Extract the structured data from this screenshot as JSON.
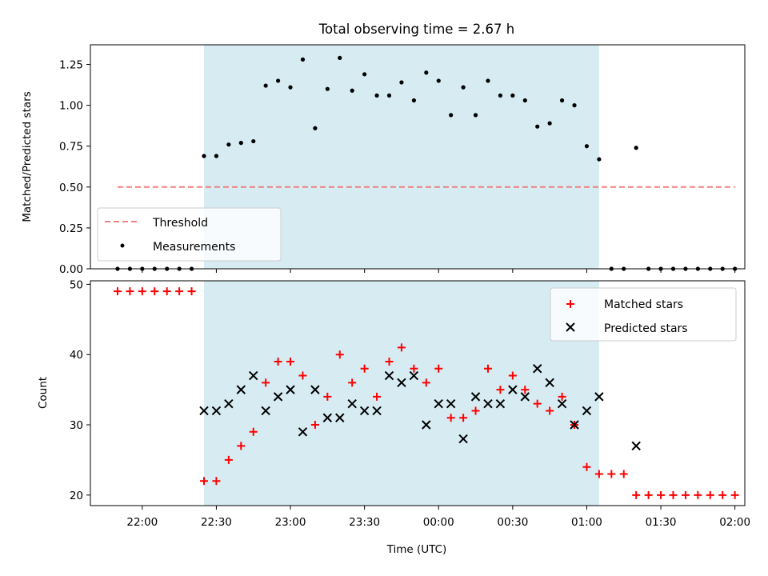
{
  "title": "Total observing time = 2.67 h",
  "chart_data": [
    {
      "type": "scatter",
      "ylabel": "Matched/Predicted stars",
      "ylim": [
        0,
        1.37
      ],
      "yticks": [
        0,
        0.25,
        0.5,
        0.75,
        1.0,
        1.25
      ],
      "ytick_labels": [
        "0.00",
        "0.25",
        "0.50",
        "0.75",
        "1.00",
        "1.25"
      ],
      "shaded_span": [
        "22:25",
        "01:05"
      ],
      "shade_color": "#add8e6",
      "threshold": {
        "name": "Threshold",
        "value": 0.5,
        "x_range": [
          "21:50",
          "02:00"
        ],
        "color": "#f08080"
      },
      "legend": {
        "position": "lower-left",
        "entries": [
          "Threshold",
          "Measurements"
        ]
      },
      "series": [
        {
          "name": "Measurements",
          "color": "#000000",
          "marker": "dot",
          "x": [
            "21:50",
            "21:55",
            "22:00",
            "22:05",
            "22:10",
            "22:15",
            "22:20",
            "22:25",
            "22:30",
            "22:35",
            "22:40",
            "22:45",
            "22:50",
            "22:55",
            "23:00",
            "23:05",
            "23:10",
            "23:15",
            "23:20",
            "23:25",
            "23:30",
            "23:35",
            "23:40",
            "23:45",
            "23:50",
            "23:55",
            "00:00",
            "00:05",
            "00:10",
            "00:15",
            "00:20",
            "00:25",
            "00:30",
            "00:35",
            "00:40",
            "00:45",
            "00:50",
            "00:55",
            "01:00",
            "01:05",
            "01:10",
            "01:15",
            "01:20",
            "01:25",
            "01:30",
            "01:35",
            "01:40",
            "01:45",
            "01:50",
            "01:55",
            "02:00"
          ],
          "y": [
            0,
            0,
            0,
            0,
            0,
            0,
            0,
            0.69,
            0.69,
            0.76,
            0.77,
            0.78,
            1.12,
            1.15,
            1.11,
            1.28,
            0.86,
            1.1,
            1.29,
            1.09,
            1.19,
            1.06,
            1.06,
            1.14,
            1.03,
            1.2,
            1.15,
            0.94,
            1.11,
            0.94,
            1.15,
            1.06,
            1.06,
            1.03,
            0.87,
            0.89,
            1.03,
            1.0,
            0.75,
            0.67,
            0,
            0,
            0.74,
            0,
            0,
            0,
            0,
            0,
            0,
            0,
            0
          ]
        }
      ]
    },
    {
      "type": "scatter",
      "xlabel": "Time (UTC)",
      "ylabel": "Count",
      "ylim": [
        18.5,
        50.5
      ],
      "yticks": [
        20,
        30,
        40,
        50
      ],
      "ytick_labels": [
        "20",
        "30",
        "40",
        "50"
      ],
      "xtick_labels": [
        "22:00",
        "22:30",
        "23:00",
        "23:30",
        "00:00",
        "00:30",
        "01:00",
        "01:30",
        "02:00"
      ],
      "xlim": [
        "21:39",
        "02:04"
      ],
      "shaded_span": [
        "22:25",
        "01:05"
      ],
      "shade_color": "#add8e6",
      "legend": {
        "position": "top-right",
        "entries": [
          "Matched stars",
          "Predicted stars"
        ]
      },
      "series": [
        {
          "name": "Matched stars",
          "color": "#ff0000",
          "marker": "plus",
          "x": [
            "21:50",
            "21:55",
            "22:00",
            "22:05",
            "22:10",
            "22:15",
            "22:20",
            "22:25",
            "22:30",
            "22:35",
            "22:40",
            "22:45",
            "22:50",
            "22:55",
            "23:00",
            "23:05",
            "23:10",
            "23:15",
            "23:20",
            "23:25",
            "23:30",
            "23:35",
            "23:40",
            "23:45",
            "23:50",
            "23:55",
            "00:00",
            "00:05",
            "00:10",
            "00:15",
            "00:20",
            "00:25",
            "00:30",
            "00:35",
            "00:40",
            "00:45",
            "00:50",
            "00:55",
            "01:00",
            "01:05",
            "01:10",
            "01:15",
            "01:20",
            "01:25",
            "01:30",
            "01:35",
            "01:40",
            "01:45",
            "01:50",
            "01:55",
            "02:00"
          ],
          "y": [
            49,
            49,
            49,
            49,
            49,
            49,
            49,
            22,
            22,
            25,
            27,
            29,
            36,
            39,
            39,
            37,
            30,
            34,
            40,
            36,
            38,
            34,
            39,
            41,
            38,
            36,
            38,
            31,
            31,
            32,
            38,
            35,
            37,
            35,
            33,
            32,
            34,
            30,
            24,
            23,
            23,
            23,
            20,
            20,
            20,
            20,
            20,
            20,
            20,
            20,
            20
          ]
        },
        {
          "name": "Predicted stars",
          "color": "#000000",
          "marker": "x",
          "x": [
            "22:25",
            "22:30",
            "22:35",
            "22:40",
            "22:45",
            "22:50",
            "22:55",
            "23:00",
            "23:05",
            "23:10",
            "23:15",
            "23:20",
            "23:25",
            "23:30",
            "23:35",
            "23:40",
            "23:45",
            "23:50",
            "23:55",
            "00:00",
            "00:05",
            "00:10",
            "00:15",
            "00:20",
            "00:25",
            "00:30",
            "00:35",
            "00:40",
            "00:45",
            "00:50",
            "00:55",
            "01:00",
            "01:05",
            "01:20"
          ],
          "y": [
            32,
            32,
            33,
            35,
            37,
            32,
            34,
            35,
            29,
            35,
            31,
            31,
            33,
            32,
            32,
            37,
            36,
            37,
            30,
            33,
            33,
            28,
            34,
            33,
            33,
            35,
            34,
            38,
            36,
            33,
            30,
            32,
            34,
            27
          ]
        }
      ]
    }
  ]
}
